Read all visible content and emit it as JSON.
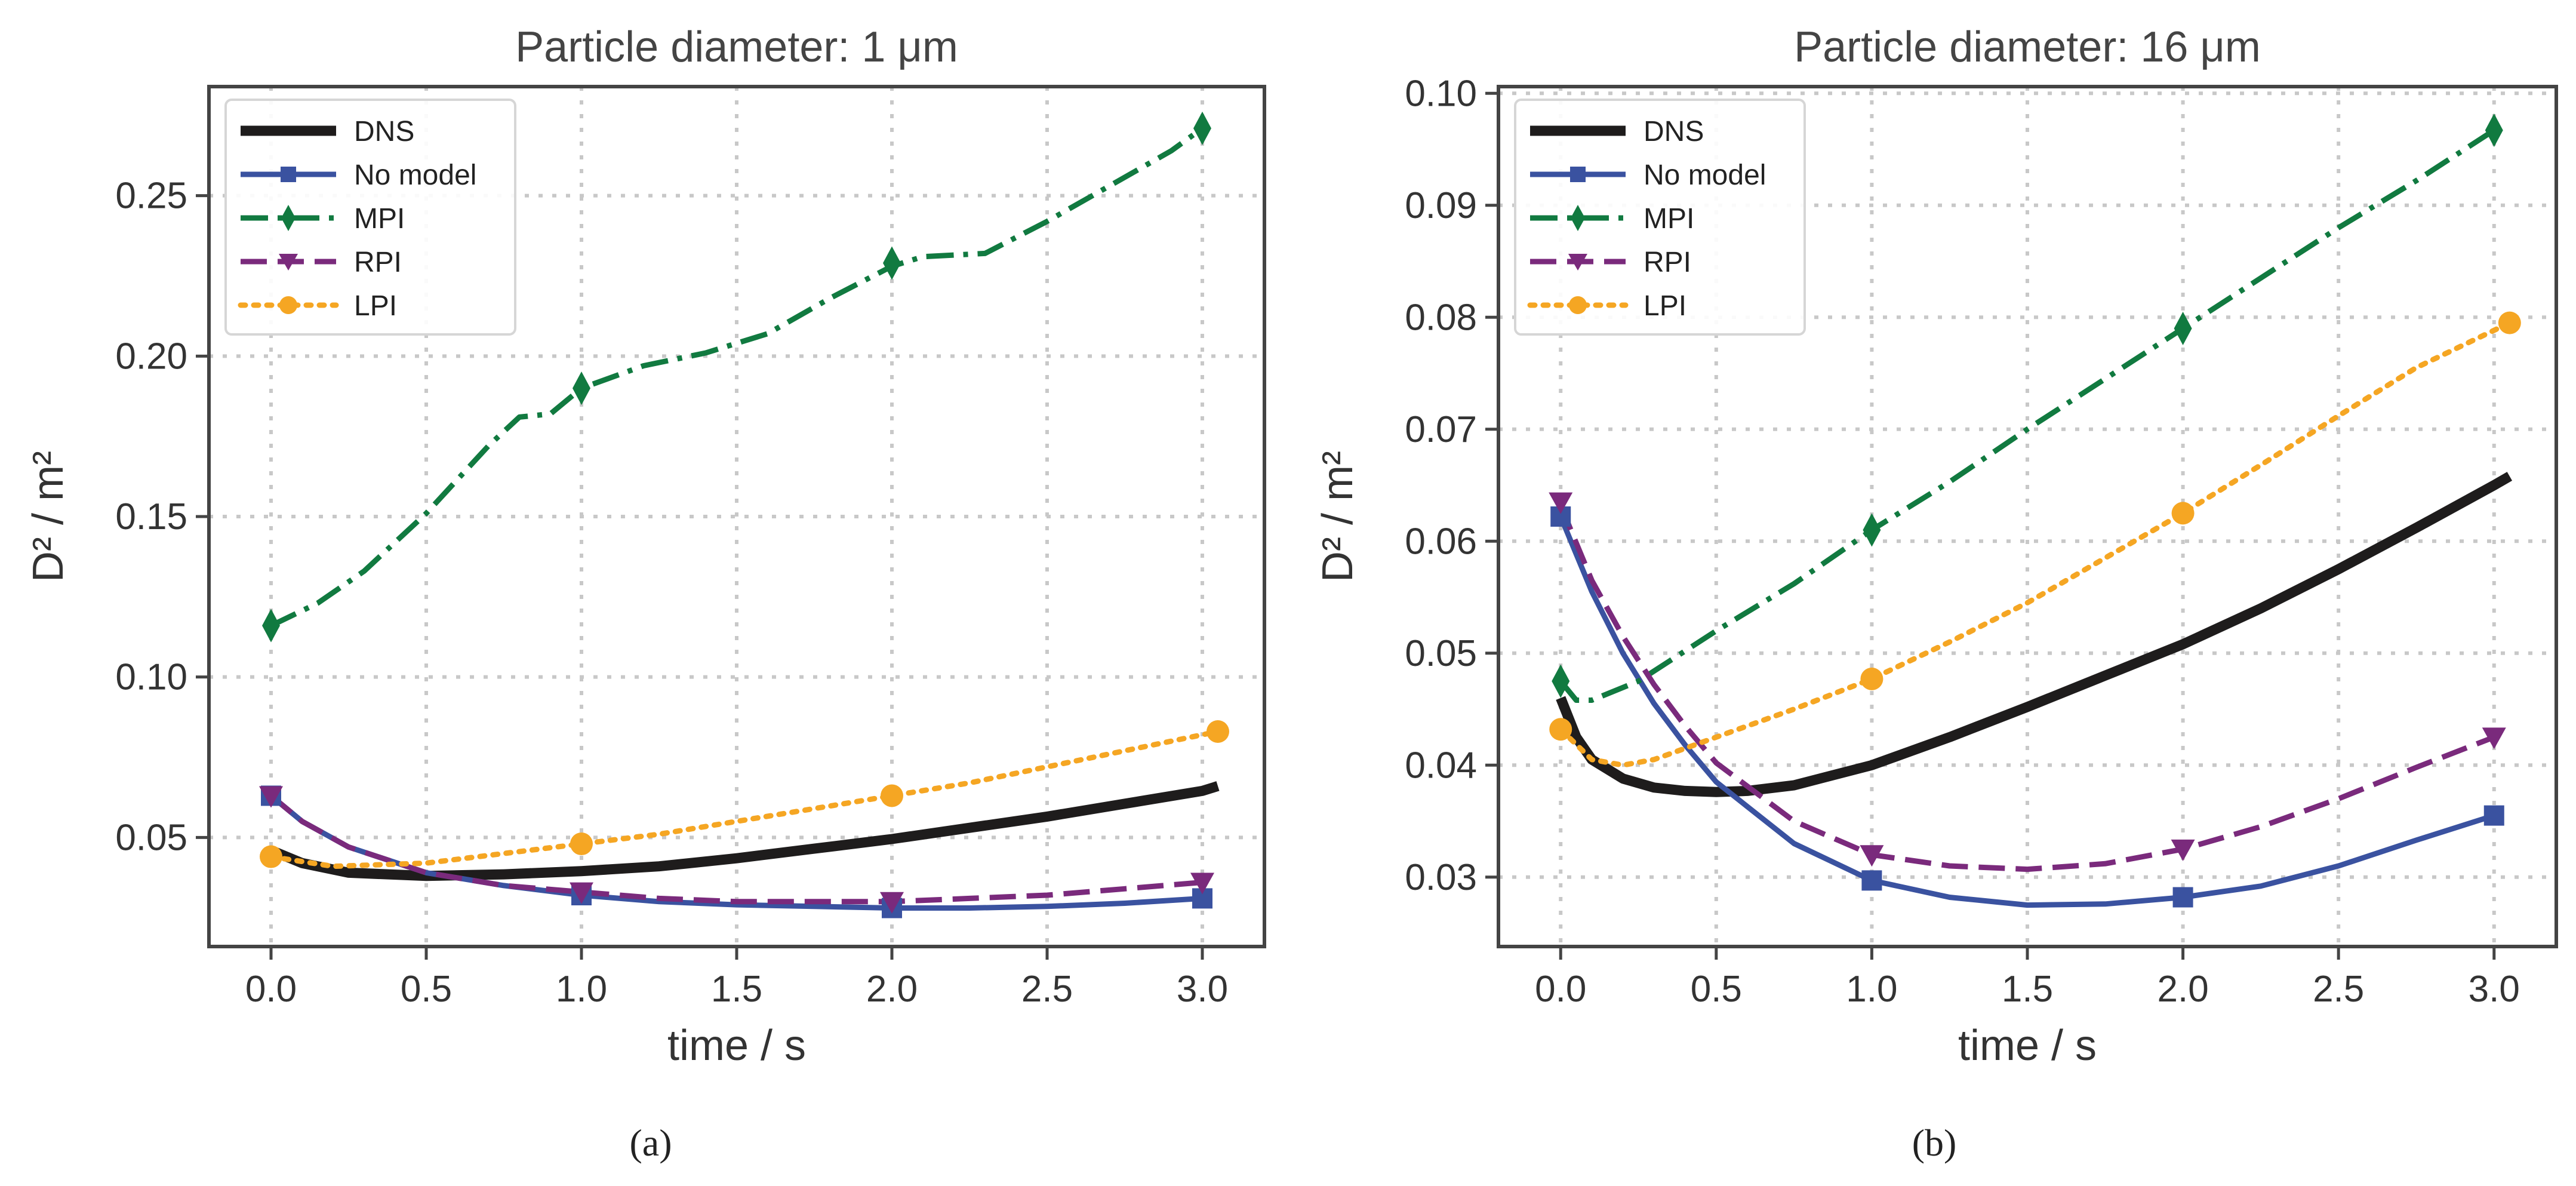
{
  "chart_data": [
    {
      "type": "line",
      "title": "Particle diameter: 1 μm",
      "xlabel": "time / s",
      "ylabel": "D² / m²",
      "xlim": [
        -0.2,
        3.2
      ],
      "ylim": [
        0.016,
        0.284
      ],
      "xticks": [
        "0.0",
        "0.5",
        "1.0",
        "1.5",
        "2.0",
        "2.5",
        "3.0"
      ],
      "yticks": [
        "0.05",
        "0.10",
        "0.15",
        "0.20",
        "0.25"
      ],
      "grid": true,
      "legend_position": "top-left",
      "caption": "(a)",
      "series": [
        {
          "name": "DNS",
          "color": "#1e1c1c",
          "style": "solid",
          "marker": "none",
          "x": [
            0.0,
            0.1,
            0.25,
            0.5,
            0.75,
            1.0,
            1.25,
            1.5,
            1.75,
            2.0,
            2.25,
            2.5,
            2.75,
            3.0,
            3.05
          ],
          "y": [
            0.046,
            0.042,
            0.039,
            0.038,
            0.0385,
            0.0395,
            0.041,
            0.0435,
            0.0465,
            0.0495,
            0.053,
            0.0565,
            0.0605,
            0.0645,
            0.066
          ],
          "markers": []
        },
        {
          "name": "No model",
          "color": "#3a52a0",
          "style": "solid",
          "marker": "square",
          "x": [
            0.0,
            0.1,
            0.25,
            0.5,
            0.75,
            1.0,
            1.25,
            1.5,
            1.75,
            2.0,
            2.25,
            2.5,
            2.75,
            3.0
          ],
          "y": [
            0.063,
            0.055,
            0.047,
            0.039,
            0.035,
            0.032,
            0.03,
            0.029,
            0.0285,
            0.028,
            0.028,
            0.0285,
            0.0295,
            0.031
          ],
          "markers": [
            [
              0.0,
              0.063
            ],
            [
              1.0,
              0.032
            ],
            [
              2.0,
              0.028
            ],
            [
              3.0,
              0.031
            ]
          ]
        },
        {
          "name": "MPI",
          "color": "#117a40",
          "style": "dashdot",
          "marker": "thin_diamond",
          "x": [
            0.0,
            0.15,
            0.3,
            0.5,
            0.7,
            0.8,
            0.9,
            1.0,
            1.2,
            1.4,
            1.6,
            1.8,
            2.0,
            2.1,
            2.3,
            2.5,
            2.7,
            2.9,
            3.0
          ],
          "y": [
            0.116,
            0.123,
            0.133,
            0.151,
            0.172,
            0.181,
            0.182,
            0.19,
            0.197,
            0.201,
            0.207,
            0.218,
            0.228,
            0.231,
            0.232,
            0.242,
            0.253,
            0.264,
            0.271
          ],
          "markers": [
            [
              0.0,
              0.116
            ],
            [
              1.0,
              0.19
            ],
            [
              2.0,
              0.229
            ],
            [
              3.0,
              0.271
            ]
          ]
        },
        {
          "name": "RPI",
          "color": "#7a2a7c",
          "style": "dashed",
          "marker": "triangle_down",
          "x": [
            0.0,
            0.1,
            0.25,
            0.5,
            0.75,
            1.0,
            1.25,
            1.5,
            1.75,
            2.0,
            2.25,
            2.5,
            2.75,
            3.0
          ],
          "y": [
            0.063,
            0.055,
            0.047,
            0.039,
            0.035,
            0.033,
            0.031,
            0.03,
            0.03,
            0.03,
            0.031,
            0.032,
            0.034,
            0.036
          ],
          "markers": [
            [
              0.0,
              0.063
            ],
            [
              1.0,
              0.033
            ],
            [
              2.0,
              0.03
            ],
            [
              3.0,
              0.036
            ]
          ]
        },
        {
          "name": "LPI",
          "color": "#f5a623",
          "style": "dotted",
          "marker": "circle",
          "x": [
            0.0,
            0.2,
            0.5,
            0.75,
            1.0,
            1.25,
            1.5,
            1.75,
            2.0,
            2.25,
            2.5,
            2.75,
            3.05
          ],
          "y": [
            0.044,
            0.041,
            0.042,
            0.045,
            0.048,
            0.051,
            0.055,
            0.059,
            0.063,
            0.067,
            0.072,
            0.077,
            0.083
          ],
          "markers": [
            [
              0.0,
              0.044
            ],
            [
              1.0,
              0.048
            ],
            [
              2.0,
              0.063
            ],
            [
              3.05,
              0.083
            ]
          ]
        }
      ]
    },
    {
      "type": "line",
      "title": "Particle diameter: 16 μm",
      "xlabel": "time / s",
      "ylabel": "D² / m²",
      "xlim": [
        -0.2,
        3.2
      ],
      "ylim": [
        0.0238,
        0.1006
      ],
      "xticks": [
        "0.0",
        "0.5",
        "1.0",
        "1.5",
        "2.0",
        "2.5",
        "3.0"
      ],
      "yticks": [
        "0.03",
        "0.04",
        "0.05",
        "0.06",
        "0.07",
        "0.08",
        "0.09",
        "0.10"
      ],
      "grid": true,
      "legend_position": "top-left",
      "caption": "(b)",
      "series": [
        {
          "name": "DNS",
          "color": "#1e1c1c",
          "style": "solid",
          "marker": "none",
          "x": [
            0.0,
            0.05,
            0.1,
            0.2,
            0.3,
            0.4,
            0.5,
            0.6,
            0.75,
            1.0,
            1.25,
            1.5,
            1.75,
            2.0,
            2.25,
            2.5,
            2.75,
            3.0,
            3.05
          ],
          "y": [
            0.046,
            0.0425,
            0.0405,
            0.0388,
            0.038,
            0.0377,
            0.0376,
            0.0377,
            0.0382,
            0.04,
            0.0425,
            0.0452,
            0.048,
            0.0508,
            0.054,
            0.0575,
            0.0612,
            0.065,
            0.0658
          ],
          "markers": []
        },
        {
          "name": "No model",
          "color": "#3a52a0",
          "style": "solid",
          "marker": "square",
          "x": [
            0.0,
            0.1,
            0.2,
            0.3,
            0.4,
            0.5,
            0.75,
            1.0,
            1.25,
            1.5,
            1.75,
            2.0,
            2.25,
            2.5,
            2.75,
            3.0
          ],
          "y": [
            0.0622,
            0.0555,
            0.05,
            0.0455,
            0.0418,
            0.0385,
            0.033,
            0.0297,
            0.0282,
            0.0275,
            0.0276,
            0.0282,
            0.0292,
            0.031,
            0.0333,
            0.0355
          ],
          "markers": [
            [
              0.0,
              0.0622
            ],
            [
              1.0,
              0.0297
            ],
            [
              2.0,
              0.0282
            ],
            [
              3.0,
              0.0355
            ]
          ]
        },
        {
          "name": "MPI",
          "color": "#117a40",
          "style": "dashdot",
          "marker": "thin_diamond",
          "x": [
            0.0,
            0.05,
            0.1,
            0.25,
            0.5,
            0.75,
            1.0,
            1.25,
            1.5,
            1.75,
            2.0,
            2.25,
            2.5,
            2.75,
            3.0
          ],
          "y": [
            0.0475,
            0.0458,
            0.0458,
            0.0475,
            0.052,
            0.0562,
            0.061,
            0.0653,
            0.07,
            0.0745,
            0.079,
            0.0835,
            0.088,
            0.0922,
            0.0967
          ],
          "markers": [
            [
              0.0,
              0.0475
            ],
            [
              1.0,
              0.061
            ],
            [
              2.0,
              0.079
            ],
            [
              3.0,
              0.0967
            ]
          ]
        },
        {
          "name": "RPI",
          "color": "#7a2a7c",
          "style": "dashed",
          "marker": "triangle_down",
          "x": [
            0.0,
            0.1,
            0.2,
            0.3,
            0.4,
            0.5,
            0.75,
            1.0,
            1.25,
            1.5,
            1.75,
            2.0,
            2.25,
            2.5,
            2.75,
            3.0
          ],
          "y": [
            0.0632,
            0.0565,
            0.0515,
            0.0472,
            0.0435,
            0.0402,
            0.035,
            0.032,
            0.031,
            0.0307,
            0.0312,
            0.0325,
            0.0345,
            0.037,
            0.0398,
            0.0425
          ],
          "markers": [
            [
              0.0,
              0.0635
            ],
            [
              1.0,
              0.032
            ],
            [
              2.0,
              0.0325
            ],
            [
              3.0,
              0.0425
            ]
          ]
        },
        {
          "name": "LPI",
          "color": "#f5a623",
          "style": "dotted",
          "marker": "circle",
          "x": [
            0.0,
            0.1,
            0.2,
            0.3,
            0.5,
            0.75,
            1.0,
            1.25,
            1.5,
            1.75,
            2.0,
            2.25,
            2.5,
            2.75,
            3.05
          ],
          "y": [
            0.0432,
            0.0405,
            0.04,
            0.0405,
            0.0425,
            0.045,
            0.0477,
            0.051,
            0.0545,
            0.0585,
            0.0625,
            0.0668,
            0.0712,
            0.0755,
            0.0795
          ],
          "markers": [
            [
              0.0,
              0.0432
            ],
            [
              1.0,
              0.0477
            ],
            [
              2.0,
              0.0625
            ],
            [
              3.05,
              0.0795
            ]
          ]
        }
      ]
    }
  ]
}
